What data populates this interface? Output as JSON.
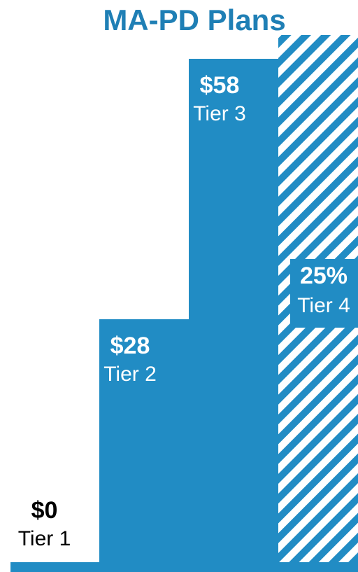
{
  "chart_data": {
    "type": "bar",
    "title": "MA-PD Plans",
    "categories": [
      "Tier 1",
      "Tier 2",
      "Tier 3",
      "Tier 4"
    ],
    "values": [
      0,
      28,
      58,
      25
    ],
    "value_labels": [
      "$0",
      "$28",
      "$58",
      "25%"
    ],
    "hatched": [
      false,
      false,
      false,
      true
    ],
    "color": "#218cc4"
  }
}
